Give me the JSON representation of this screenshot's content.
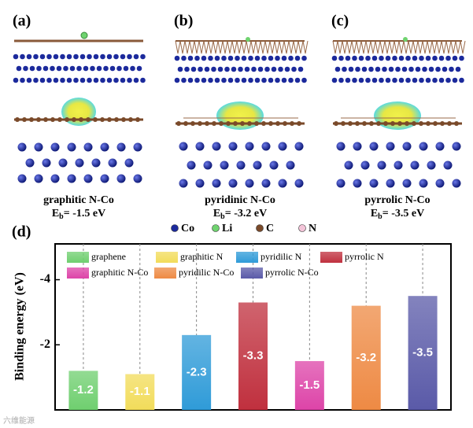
{
  "panels": [
    {
      "tag": "(a)",
      "label": "graphitic N-Co",
      "eb_main": "E",
      "eb_sub": "b",
      "eb_rest": "= -1.5 eV"
    },
    {
      "tag": "(b)",
      "label": "pyridinic N-Co",
      "eb_main": "E",
      "eb_sub": "b",
      "eb_rest": "= -3.2 eV"
    },
    {
      "tag": "(c)",
      "label": "pyrrolic N-Co",
      "eb_main": "E",
      "eb_sub": "b",
      "eb_rest": "= -3.5 eV"
    }
  ],
  "atom_legend": [
    {
      "name": "Co",
      "color": "#1c2a9c"
    },
    {
      "name": "Li",
      "color": "#6fd36f"
    },
    {
      "name": "C",
      "color": "#7a4a2a"
    },
    {
      "name": "N",
      "color": "#f3c4d8"
    }
  ],
  "watermark": "六维能源",
  "chart_data": {
    "type": "bar",
    "tag": "(d)",
    "y_label": "Binding energy (eV)",
    "categories": [
      "graphene",
      "graphitic N",
      "pyridilic N",
      "pyrrolic N",
      "graphitic N-Co",
      "pyridilic N-Co",
      "pyrrolic N-Co"
    ],
    "values": [
      -1.2,
      -1.1,
      -2.3,
      -3.3,
      -1.5,
      -3.2,
      -3.5
    ],
    "colors": [
      "#6fcf6f",
      "#f2dc5a",
      "#2f9bd8",
      "#c0303e",
      "#dd44a8",
      "#ee8a44",
      "#5a5aa8"
    ],
    "ylim": [
      0,
      -5.1
    ],
    "yticks": [
      -4,
      -2
    ]
  }
}
